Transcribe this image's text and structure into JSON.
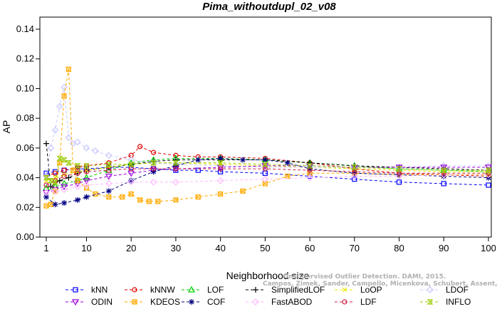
{
  "chart_data": {
    "type": "line",
    "title": "Pima_withoutdupl_02_v08",
    "xlabel": "Neighborhood size",
    "ylabel": "AP",
    "xlim": [
      1,
      100
    ],
    "ylim": [
      0,
      0.14
    ],
    "xticks": [
      "1",
      "10",
      "20",
      "30",
      "40",
      "50",
      "60",
      "70",
      "80",
      "90",
      "100"
    ],
    "yticks": [
      "0.00",
      "0.02",
      "0.04",
      "0.06",
      "0.08",
      "0.10",
      "0.12",
      "0.14"
    ],
    "grid": false,
    "legend_position": "bottom",
    "watermark": {
      "line1": "Unsupervised Outlier Detection. DAMI, 2015.",
      "line2": "Campos, Zimek, Sander, Campello, Micenkova, Schubert, Assent, Houle"
    },
    "series": [
      {
        "name": "kNN",
        "color": "#0000ff",
        "marker": "square",
        "x": [
          1,
          3,
          5,
          8,
          10,
          15,
          20,
          25,
          30,
          35,
          40,
          50,
          60,
          70,
          80,
          90,
          100
        ],
        "y": [
          0.043,
          0.044,
          0.045,
          0.046,
          0.046,
          0.047,
          0.047,
          0.046,
          0.045,
          0.045,
          0.044,
          0.043,
          0.041,
          0.039,
          0.037,
          0.036,
          0.035
        ]
      },
      {
        "name": "kNNW",
        "color": "#e00000",
        "marker": "circle",
        "x": [
          1,
          3,
          5,
          8,
          10,
          15,
          20,
          22,
          25,
          30,
          35,
          40,
          50,
          60,
          70,
          80,
          90,
          100
        ],
        "y": [
          0.041,
          0.043,
          0.045,
          0.047,
          0.048,
          0.05,
          0.055,
          0.061,
          0.057,
          0.055,
          0.054,
          0.054,
          0.053,
          0.05,
          0.046,
          0.043,
          0.042,
          0.041
        ]
      },
      {
        "name": "LOF",
        "color": "#00cc00",
        "marker": "triangle-up",
        "x": [
          1,
          3,
          5,
          8,
          10,
          15,
          20,
          25,
          30,
          40,
          50,
          60,
          70,
          80,
          90,
          100
        ],
        "y": [
          0.033,
          0.034,
          0.036,
          0.038,
          0.04,
          0.045,
          0.05,
          0.052,
          0.053,
          0.053,
          0.052,
          0.05,
          0.048,
          0.046,
          0.045,
          0.044
        ]
      },
      {
        "name": "SimplifiedLOF",
        "color": "#000000",
        "marker": "plus",
        "x": [
          1,
          2,
          4,
          6,
          8,
          10,
          15,
          20,
          25,
          30,
          40,
          50,
          60,
          70,
          80,
          90,
          100
        ],
        "y": [
          0.063,
          0.034,
          0.038,
          0.04,
          0.043,
          0.045,
          0.047,
          0.049,
          0.051,
          0.052,
          0.052,
          0.052,
          0.05,
          0.048,
          0.047,
          0.046,
          0.045
        ]
      },
      {
        "name": "LoOP",
        "color": "#e8e800",
        "marker": "x",
        "x": [
          1,
          3,
          5,
          8,
          10,
          15,
          20,
          25,
          30,
          40,
          50,
          60,
          70,
          80,
          90,
          100
        ],
        "y": [
          0.038,
          0.04,
          0.042,
          0.044,
          0.045,
          0.047,
          0.049,
          0.05,
          0.05,
          0.049,
          0.048,
          0.047,
          0.046,
          0.045,
          0.044,
          0.044
        ]
      },
      {
        "name": "LDOF",
        "color": "#c8c8ff",
        "marker": "diamond",
        "x": [
          1,
          2,
          3,
          4,
          5,
          6,
          7,
          8,
          10,
          12,
          15,
          20,
          25,
          30,
          40,
          50,
          60,
          70,
          80,
          90,
          100
        ],
        "y": [
          0.041,
          0.06,
          0.072,
          0.088,
          0.101,
          0.067,
          0.063,
          0.064,
          0.06,
          0.058,
          0.055,
          0.052,
          0.05,
          0.049,
          0.048,
          0.047,
          0.047,
          0.047,
          0.047,
          0.048,
          0.048
        ]
      },
      {
        "name": "ODIN",
        "color": "#9900dd",
        "marker": "triangle-down",
        "x": [
          1,
          3,
          5,
          8,
          10,
          15,
          20,
          25,
          30,
          40,
          50,
          60,
          70,
          80,
          90,
          100
        ],
        "y": [
          0.03,
          0.032,
          0.034,
          0.036,
          0.038,
          0.041,
          0.043,
          0.045,
          0.046,
          0.047,
          0.048,
          0.048,
          0.047,
          0.047,
          0.047,
          0.047
        ]
      },
      {
        "name": "KDEOS",
        "color": "#ffaa00",
        "marker": "square-x",
        "x": [
          1,
          2,
          3,
          4,
          5,
          6,
          7,
          8,
          10,
          12,
          15,
          18,
          20,
          22,
          24,
          26,
          30,
          35,
          40,
          45,
          50,
          55,
          60,
          70,
          80,
          90,
          100
        ],
        "y": [
          0.021,
          0.022,
          0.031,
          0.05,
          0.095,
          0.113,
          0.045,
          0.038,
          0.033,
          0.029,
          0.027,
          0.027,
          0.029,
          0.025,
          0.024,
          0.024,
          0.025,
          0.027,
          0.029,
          0.031,
          0.036,
          0.041,
          0.043,
          0.043,
          0.042,
          0.042,
          0.042
        ]
      },
      {
        "name": "COF",
        "color": "#000080",
        "marker": "asterisk",
        "x": [
          1,
          3,
          5,
          8,
          10,
          15,
          20,
          25,
          30,
          35,
          40,
          45,
          50,
          55,
          60,
          70,
          80,
          90,
          100
        ],
        "y": [
          0.027,
          0.022,
          0.023,
          0.025,
          0.027,
          0.031,
          0.038,
          0.044,
          0.048,
          0.052,
          0.053,
          0.052,
          0.052,
          0.05,
          0.046,
          0.043,
          0.042,
          0.041,
          0.04
        ]
      },
      {
        "name": "FastABOD",
        "color": "#ffbbff",
        "marker": "diamond",
        "x": [
          1,
          3,
          5,
          8,
          10,
          15,
          20,
          25,
          30,
          40,
          50,
          60,
          70,
          80,
          90,
          100
        ],
        "y": [
          0.03,
          0.031,
          0.032,
          0.034,
          0.035,
          0.036,
          0.037,
          0.037,
          0.037,
          0.038,
          0.039,
          0.04,
          0.041,
          0.041,
          0.042,
          0.042
        ]
      },
      {
        "name": "LDF",
        "color": "#cc2244",
        "marker": "circle",
        "x": [
          1,
          3,
          5,
          8,
          10,
          15,
          20,
          25,
          30,
          40,
          50,
          60,
          70,
          80,
          90,
          100
        ],
        "y": [
          0.035,
          0.038,
          0.041,
          0.043,
          0.044,
          0.045,
          0.046,
          0.046,
          0.046,
          0.046,
          0.046,
          0.045,
          0.044,
          0.043,
          0.043,
          0.043
        ]
      },
      {
        "name": "INFLO",
        "color": "#99cc00",
        "marker": "hourglass",
        "x": [
          1,
          2,
          3,
          4,
          5,
          6,
          8,
          10,
          15,
          20,
          25,
          30,
          40,
          50,
          60,
          70,
          80,
          90,
          100
        ],
        "y": [
          0.04,
          0.038,
          0.037,
          0.053,
          0.052,
          0.05,
          0.048,
          0.048,
          0.049,
          0.049,
          0.05,
          0.05,
          0.05,
          0.049,
          0.048,
          0.047,
          0.046,
          0.045,
          0.045
        ]
      }
    ]
  }
}
